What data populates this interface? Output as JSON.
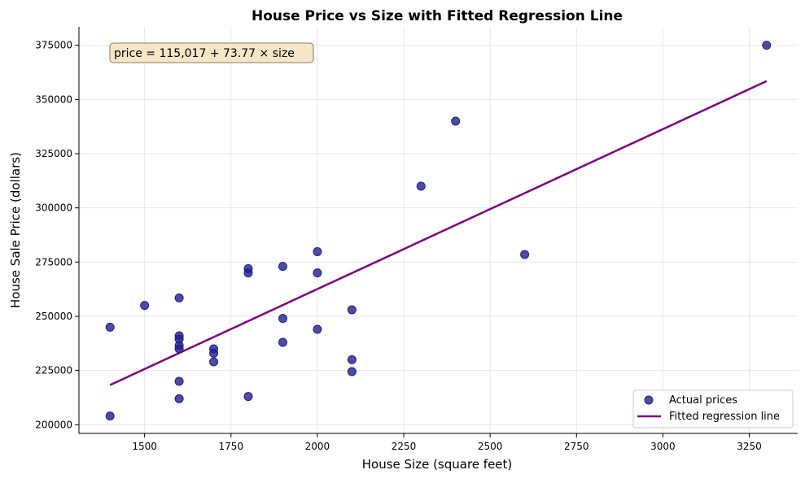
{
  "chart_data": {
    "type": "scatter",
    "title": "House Price vs Size with Fitted Regression Line",
    "xlabel": "House Size (square feet)",
    "ylabel": "House Sale Price (dollars)",
    "xlim": [
      1310,
      3390
    ],
    "ylim": [
      196000,
      383500
    ],
    "x_ticks": [
      1500,
      1750,
      2000,
      2250,
      2500,
      2750,
      3000,
      3250
    ],
    "y_ticks": [
      200000,
      225000,
      250000,
      275000,
      300000,
      325000,
      350000,
      375000
    ],
    "grid": true,
    "legend_position": "lower-right",
    "annotation": "price = 115,017 + 73.77 × size",
    "series": [
      {
        "name": "Actual prices",
        "kind": "scatter",
        "color": "#1f1f8f",
        "points": [
          [
            1400,
            245000
          ],
          [
            1400,
            204000
          ],
          [
            1500,
            255000
          ],
          [
            1600,
            258500
          ],
          [
            1600,
            241000
          ],
          [
            1600,
            239500
          ],
          [
            1600,
            236500
          ],
          [
            1600,
            235000
          ],
          [
            1600,
            220000
          ],
          [
            1600,
            212000
          ],
          [
            1700,
            235000
          ],
          [
            1700,
            233000
          ],
          [
            1700,
            229000
          ],
          [
            1800,
            272000
          ],
          [
            1800,
            270000
          ],
          [
            1800,
            213000
          ],
          [
            1900,
            273000
          ],
          [
            1900,
            249000
          ],
          [
            1900,
            238000
          ],
          [
            2000,
            279800
          ],
          [
            2000,
            270000
          ],
          [
            2000,
            244000
          ],
          [
            2100,
            253000
          ],
          [
            2100,
            230000
          ],
          [
            2100,
            224500
          ],
          [
            2300,
            310000
          ],
          [
            2400,
            340000
          ],
          [
            2600,
            278500
          ],
          [
            3300,
            375000
          ]
        ]
      },
      {
        "name": "Fitted regression line",
        "kind": "line",
        "color": "#800080",
        "intercept": 115017,
        "slope": 73.77,
        "x_range": [
          1400,
          3300
        ]
      }
    ]
  }
}
